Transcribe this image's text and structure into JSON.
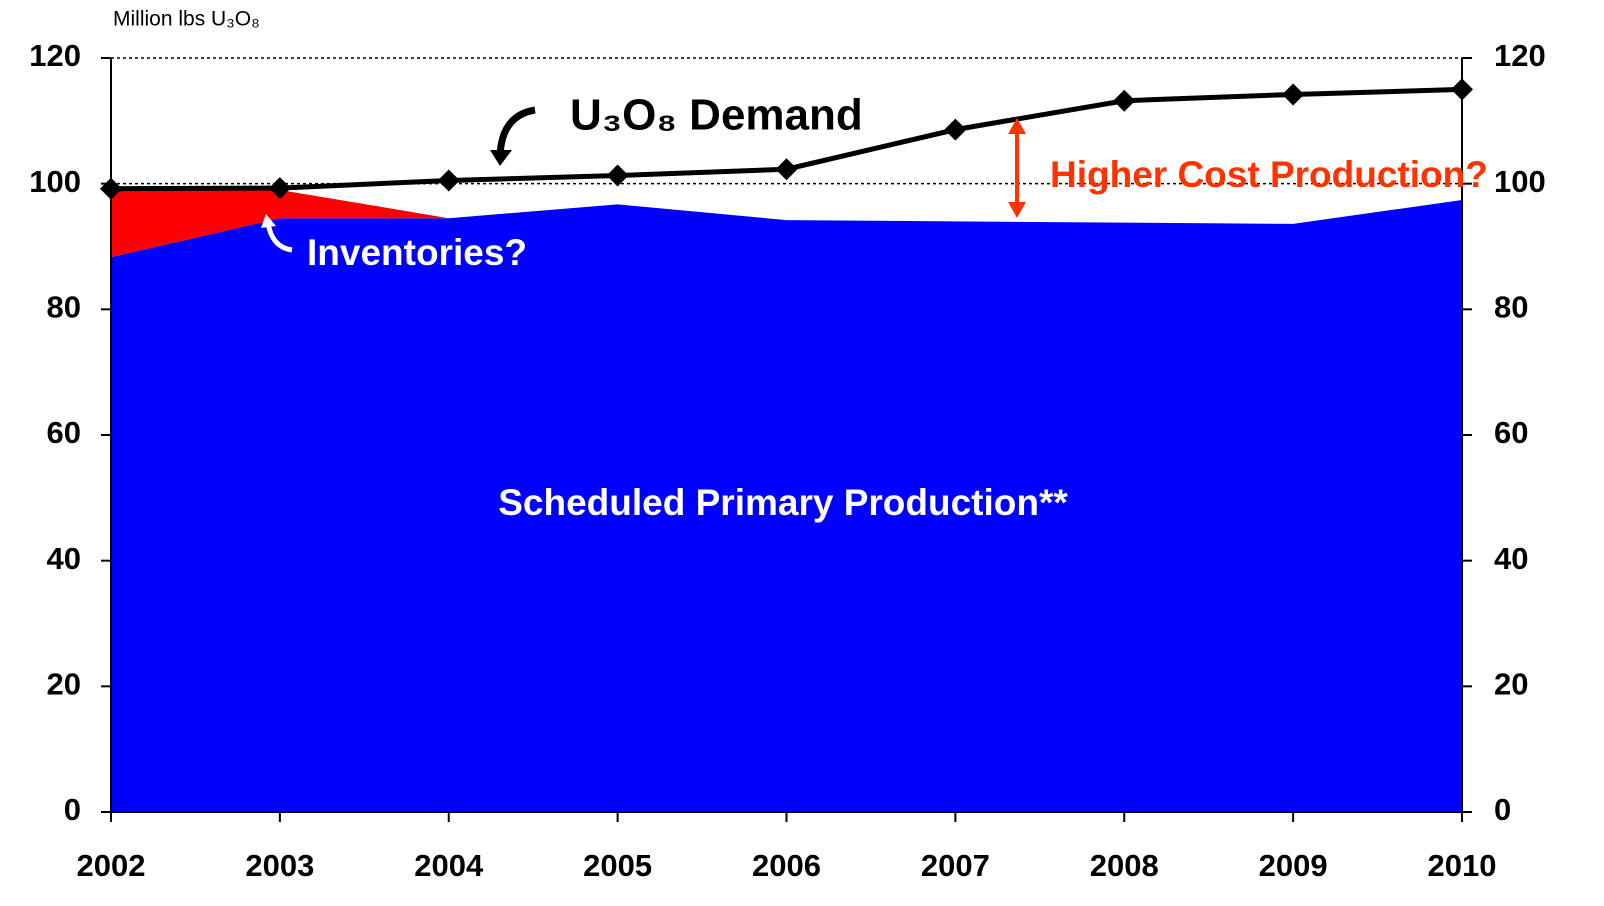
{
  "chart_data": {
    "type": "area",
    "axis_label": "Million lbs U₃O₈",
    "annotation": "Higher Cost Production?",
    "categories": [
      "2002",
      "2003",
      "2004",
      "2005",
      "2006",
      "2007",
      "2008",
      "2009",
      "2010"
    ],
    "series": [
      {
        "name": "Scheduled Primary Production**",
        "color": "#0000ff",
        "type": "area",
        "values": [
          88.3,
          94.5,
          94.5,
          96.7,
          94.2,
          94.0,
          93.8,
          93.6,
          97.4
        ]
      },
      {
        "name": "Inventories?",
        "color": "#ff0000",
        "type": "area",
        "stacked": true,
        "values": [
          10.8,
          4.5,
          0,
          0,
          0,
          0,
          0,
          0,
          0
        ]
      },
      {
        "name": "U₃O₈ Demand",
        "color": "#000000",
        "type": "line",
        "values": [
          99.2,
          99.3,
          100.5,
          101.3,
          102.3,
          108.6,
          113.2,
          114.2,
          115.0
        ]
      }
    ],
    "ylim": [
      0,
      120
    ],
    "yticks": [
      0,
      20,
      40,
      60,
      80,
      100,
      120
    ],
    "y2lim": [
      0,
      120
    ],
    "y2ticks": [
      0,
      20,
      40,
      60,
      80,
      100,
      120
    ],
    "reference_lines": [
      100,
      120
    ]
  }
}
